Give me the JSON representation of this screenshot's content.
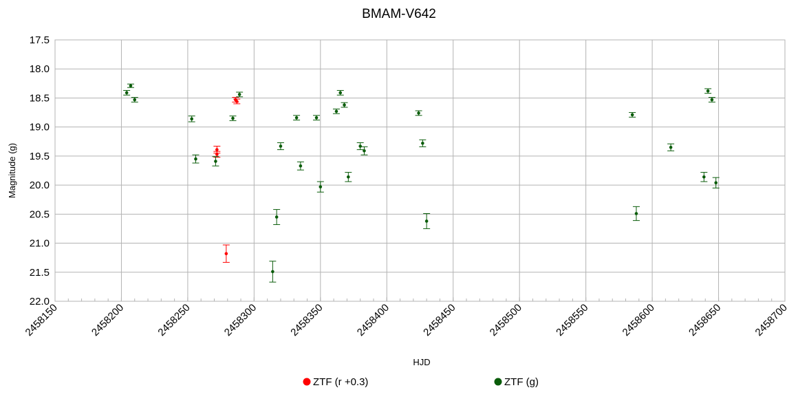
{
  "chart_data": {
    "type": "scatter",
    "title": "BMAM-V642",
    "xlabel": "HJD",
    "ylabel": "Magnitude (g)",
    "xlim": [
      2458150,
      2458700
    ],
    "ylim": [
      17.5,
      22.0
    ],
    "y_inverted": true,
    "grid": true,
    "legend_position": "bottom",
    "x_ticks": [
      "2458150",
      "2458200",
      "2458250",
      "2458300",
      "2458350",
      "2458400",
      "2458450",
      "2458500",
      "2458550",
      "2458600",
      "2458650",
      "2458700"
    ],
    "y_ticks": [
      "17.5",
      "18.0",
      "18.5",
      "19.0",
      "19.5",
      "20.0",
      "20.5",
      "21.0",
      "21.5",
      "22.0"
    ],
    "series": [
      {
        "name": "ZTF (r +0.3)",
        "color": "#ff0000",
        "points": [
          {
            "x": 2458272,
            "y": 19.39,
            "err": 0.06
          },
          {
            "x": 2458272,
            "y": 19.47,
            "err": 0.05
          },
          {
            "x": 2458279,
            "y": 21.18,
            "err": 0.15
          },
          {
            "x": 2458286,
            "y": 18.53,
            "err": 0.04
          },
          {
            "x": 2458287,
            "y": 18.56,
            "err": 0.04
          }
        ]
      },
      {
        "name": "ZTF (g)",
        "color": "#0a5c0a",
        "points": [
          {
            "x": 2458204,
            "y": 18.41,
            "err": 0.04
          },
          {
            "x": 2458207,
            "y": 18.29,
            "err": 0.03
          },
          {
            "x": 2458210,
            "y": 18.53,
            "err": 0.04
          },
          {
            "x": 2458253,
            "y": 18.86,
            "err": 0.05
          },
          {
            "x": 2458256,
            "y": 19.55,
            "err": 0.07
          },
          {
            "x": 2458271,
            "y": 19.59,
            "err": 0.08
          },
          {
            "x": 2458284,
            "y": 18.85,
            "err": 0.04
          },
          {
            "x": 2458289,
            "y": 18.44,
            "err": 0.04
          },
          {
            "x": 2458314,
            "y": 21.49,
            "err": 0.18
          },
          {
            "x": 2458317,
            "y": 20.55,
            "err": 0.13
          },
          {
            "x": 2458320,
            "y": 19.33,
            "err": 0.06
          },
          {
            "x": 2458332,
            "y": 18.84,
            "err": 0.04
          },
          {
            "x": 2458335,
            "y": 19.67,
            "err": 0.07
          },
          {
            "x": 2458347,
            "y": 18.84,
            "err": 0.04
          },
          {
            "x": 2458350,
            "y": 20.03,
            "err": 0.09
          },
          {
            "x": 2458362,
            "y": 18.73,
            "err": 0.04
          },
          {
            "x": 2458365,
            "y": 18.41,
            "err": 0.04
          },
          {
            "x": 2458368,
            "y": 18.62,
            "err": 0.04
          },
          {
            "x": 2458371,
            "y": 19.86,
            "err": 0.08
          },
          {
            "x": 2458380,
            "y": 19.33,
            "err": 0.06
          },
          {
            "x": 2458383,
            "y": 19.41,
            "err": 0.07
          },
          {
            "x": 2458424,
            "y": 18.76,
            "err": 0.04
          },
          {
            "x": 2458427,
            "y": 19.28,
            "err": 0.06
          },
          {
            "x": 2458430,
            "y": 20.62,
            "err": 0.13
          },
          {
            "x": 2458585,
            "y": 18.79,
            "err": 0.04
          },
          {
            "x": 2458588,
            "y": 20.49,
            "err": 0.12
          },
          {
            "x": 2458614,
            "y": 19.35,
            "err": 0.06
          },
          {
            "x": 2458639,
            "y": 19.86,
            "err": 0.08
          },
          {
            "x": 2458642,
            "y": 18.38,
            "err": 0.04
          },
          {
            "x": 2458645,
            "y": 18.53,
            "err": 0.04
          },
          {
            "x": 2458648,
            "y": 19.96,
            "err": 0.09
          }
        ]
      }
    ]
  }
}
